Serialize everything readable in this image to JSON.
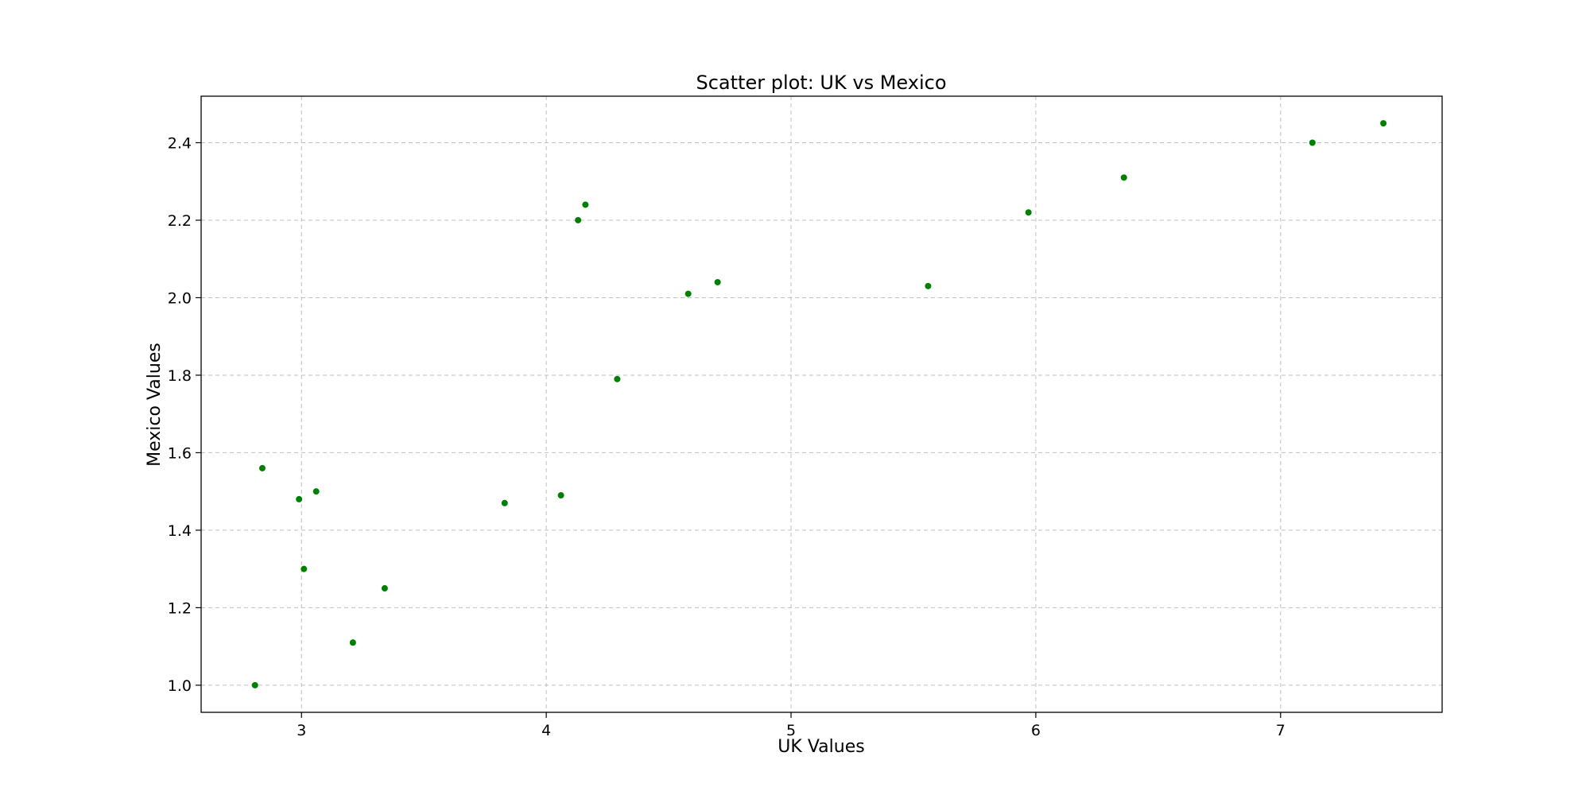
{
  "chart_data": {
    "type": "scatter",
    "title": "Scatter plot: UK vs Mexico",
    "xlabel": "UK Values",
    "ylabel": "Mexico Values",
    "xlim": [
      2.59,
      7.66
    ],
    "ylim": [
      0.93,
      2.52
    ],
    "x_ticks": [
      3,
      4,
      5,
      6,
      7
    ],
    "x_tick_labels": [
      "3",
      "4",
      "5",
      "6",
      "7"
    ],
    "y_ticks": [
      1.0,
      1.2,
      1.4,
      1.6,
      1.8,
      2.0,
      2.2,
      2.4
    ],
    "y_tick_labels": [
      "1.0",
      "1.2",
      "1.4",
      "1.6",
      "1.8",
      "2.0",
      "2.2",
      "2.4"
    ],
    "grid": true,
    "marker_color": "#008000",
    "points": [
      {
        "x": 2.81,
        "y": 1.0
      },
      {
        "x": 2.84,
        "y": 1.56
      },
      {
        "x": 2.99,
        "y": 1.48
      },
      {
        "x": 3.01,
        "y": 1.3
      },
      {
        "x": 3.06,
        "y": 1.5
      },
      {
        "x": 3.21,
        "y": 1.11
      },
      {
        "x": 3.34,
        "y": 1.25
      },
      {
        "x": 3.83,
        "y": 1.47
      },
      {
        "x": 4.06,
        "y": 1.49
      },
      {
        "x": 4.13,
        "y": 2.2
      },
      {
        "x": 4.16,
        "y": 2.24
      },
      {
        "x": 4.29,
        "y": 1.79
      },
      {
        "x": 4.58,
        "y": 2.01
      },
      {
        "x": 4.7,
        "y": 2.04
      },
      {
        "x": 5.56,
        "y": 2.03
      },
      {
        "x": 5.97,
        "y": 2.22
      },
      {
        "x": 6.36,
        "y": 2.31
      },
      {
        "x": 7.13,
        "y": 2.4
      },
      {
        "x": 7.42,
        "y": 2.45
      }
    ]
  }
}
